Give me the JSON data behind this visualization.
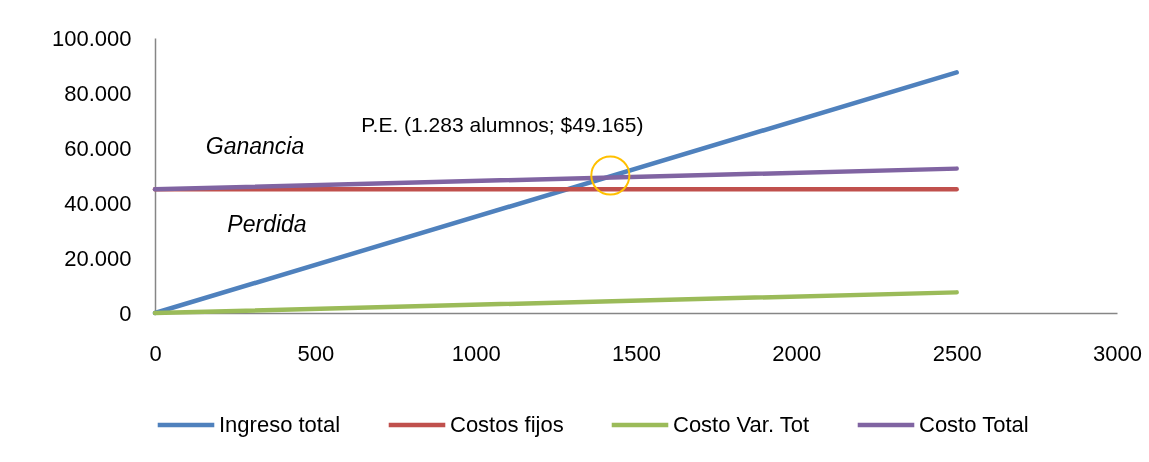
{
  "chart_data": {
    "type": "line",
    "x": [
      0,
      2500
    ],
    "series": [
      {
        "name": "Ingreso total",
        "color": "#4f81bd",
        "values": [
          0,
          87500
        ]
      },
      {
        "name": "Costos fijos",
        "color": "#c0504d",
        "values": [
          45000,
          45000
        ]
      },
      {
        "name": "Costo Var. Tot",
        "color": "#9bbb59",
        "values": [
          0,
          7500
        ]
      },
      {
        "name": "Costo Total",
        "color": "#8064a2",
        "values": [
          45000,
          52500
        ]
      },
      {
        "type": "scatter",
        "color": "#ffc000",
        "x": [
          1420
        ],
        "values": [
          50000
        ]
      }
    ],
    "xlim": [
      0,
      3000
    ],
    "xticks": [
      0,
      500,
      1000,
      1500,
      2000,
      2500,
      3000
    ],
    "ylim": [
      0,
      100000
    ],
    "yticks": [
      0,
      {
        "value": 20000,
        "label": "20.000"
      },
      {
        "value": 40000,
        "label": "40.000"
      },
      {
        "value": 60000,
        "label": "60.000"
      },
      {
        "value": 80000,
        "label": "80.000"
      },
      {
        "value": 100000,
        "label": "100.000"
      }
    ],
    "legend": "bottom",
    "annotations": [
      {
        "text": "P.E. (1.283 alumnos; $49.165)",
        "x": 1420,
        "y": 50000
      },
      "Ganancia",
      "Perdida"
    ]
  }
}
